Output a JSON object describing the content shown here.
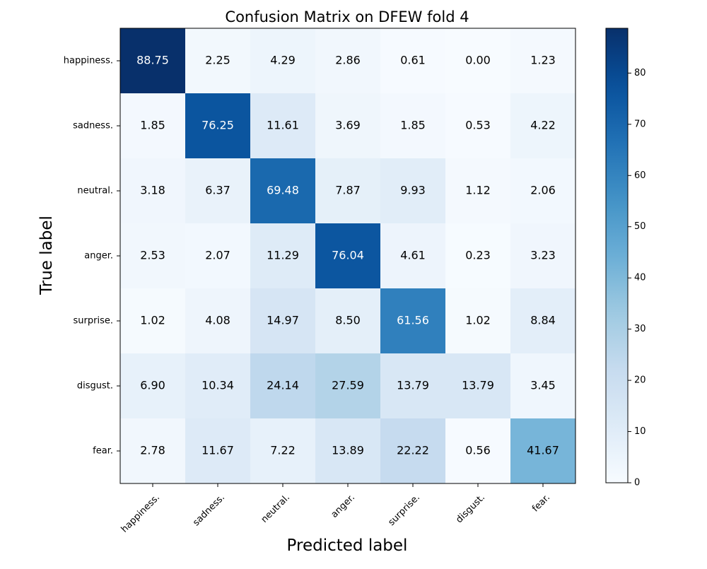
{
  "chart_data": {
    "type": "heatmap",
    "title": "Confusion Matrix on DFEW fold 4",
    "xlabel": "Predicted label",
    "ylabel": "True label",
    "x_categories": [
      "happiness.",
      "sadness.",
      "neutral.",
      "anger.",
      "surprise.",
      "disgust.",
      "fear."
    ],
    "y_categories": [
      "happiness.",
      "sadness.",
      "neutral.",
      "anger.",
      "surprise.",
      "disgust.",
      "fear."
    ],
    "values": [
      [
        88.75,
        2.25,
        4.29,
        2.86,
        0.61,
        0.0,
        1.23
      ],
      [
        1.85,
        76.25,
        11.61,
        3.69,
        1.85,
        0.53,
        4.22
      ],
      [
        3.18,
        6.37,
        69.48,
        7.87,
        9.93,
        1.12,
        2.06
      ],
      [
        2.53,
        2.07,
        11.29,
        76.04,
        4.61,
        0.23,
        3.23
      ],
      [
        1.02,
        4.08,
        14.97,
        8.5,
        61.56,
        1.02,
        8.84
      ],
      [
        6.9,
        10.34,
        24.14,
        27.59,
        13.79,
        13.79,
        3.45
      ],
      [
        2.78,
        11.67,
        7.22,
        13.89,
        22.22,
        0.56,
        41.67
      ]
    ],
    "value_format": "%.2f",
    "colormap": "Blues",
    "color_range": [
      0,
      88.75
    ],
    "colorbar": {
      "ticks": [
        0,
        10,
        20,
        30,
        40,
        50,
        60,
        70,
        80
      ],
      "range": [
        0,
        88.75
      ]
    },
    "text_color_threshold": 44.375,
    "colors": {
      "text_dark": "#000000",
      "text_light": "#ffffff"
    }
  }
}
